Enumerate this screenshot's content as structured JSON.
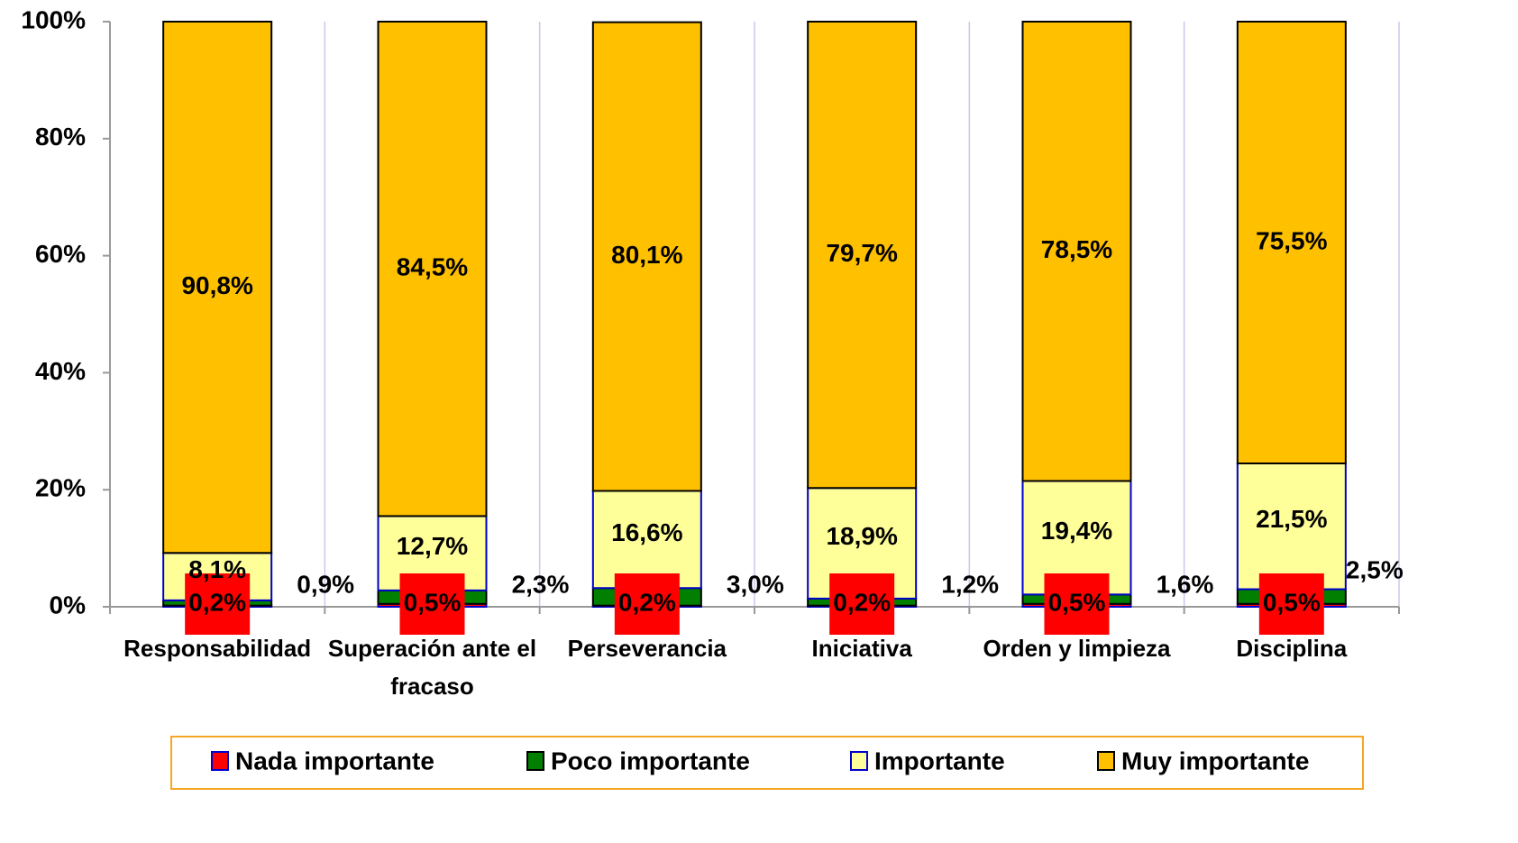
{
  "chart_data": {
    "type": "stacked_bar",
    "categories": [
      "Responsabilidad",
      "Superación ante el fracaso",
      "Perseverancia",
      "Iniciativa",
      "Orden y limpieza",
      "Disciplina"
    ],
    "series": [
      {
        "name": "Nada importante",
        "color": "#ff0000",
        "values": [
          0.2,
          0.5,
          0.2,
          0.2,
          0.5,
          0.5
        ],
        "value_labels": [
          "0,2%",
          "0,5%",
          "0,2%",
          "0,2%",
          "0,5%",
          "0,5%"
        ]
      },
      {
        "name": "Poco importante",
        "color": "#007f00",
        "values": [
          0.9,
          2.3,
          3.0,
          1.2,
          1.6,
          2.5
        ],
        "value_labels": [
          "0,9%",
          "2,3%",
          "3,0%",
          "1,2%",
          "1,6%",
          "2,5%"
        ]
      },
      {
        "name": "Importante",
        "color": "#ffff99",
        "values": [
          8.1,
          12.7,
          16.6,
          18.9,
          19.4,
          21.5
        ],
        "value_labels": [
          "8,1%",
          "12,7%",
          "16,6%",
          "18,9%",
          "19,4%",
          "21,5%"
        ]
      },
      {
        "name": "Muy importante",
        "color": "#ffc000",
        "values": [
          90.8,
          84.5,
          80.1,
          79.7,
          78.5,
          75.5
        ],
        "value_labels": [
          "90,8%",
          "84,5%",
          "80,1%",
          "79,7%",
          "78,5%",
          "75,5%"
        ]
      }
    ],
    "ylim": [
      0,
      100
    ],
    "yticks": [
      {
        "value": 0,
        "label": "0%"
      },
      {
        "value": 20,
        "label": "20%"
      },
      {
        "value": 40,
        "label": "40%"
      },
      {
        "value": 60,
        "label": "60%"
      },
      {
        "value": 80,
        "label": "80%"
      },
      {
        "value": 100,
        "label": "100%"
      }
    ],
    "grid": true,
    "legend": "bottom"
  }
}
